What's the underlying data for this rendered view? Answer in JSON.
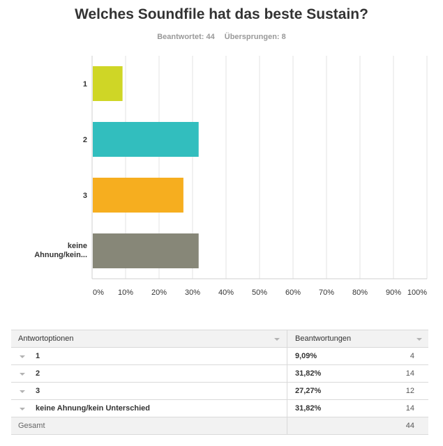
{
  "header": {
    "title": "Welches Soundfile hat das beste Sustain?",
    "answered": "Beantwortet: 44",
    "skipped": "Übersprungen: 8"
  },
  "chart_data": {
    "type": "bar",
    "orientation": "horizontal",
    "categories": [
      "1",
      "2",
      "3",
      "keine Ahnung/kein..."
    ],
    "values": [
      9.09,
      31.82,
      27.27,
      31.82
    ],
    "colors": [
      "#cfd626",
      "#32bebe",
      "#f6ae1f",
      "#878778"
    ],
    "xlim": [
      0,
      100
    ],
    "xticks": [
      "0%",
      "10%",
      "20%",
      "30%",
      "40%",
      "50%",
      "60%",
      "70%",
      "80%",
      "90%",
      "100%"
    ],
    "grid": true
  },
  "table": {
    "col_options": "Antwortoptionen",
    "col_responses": "Beantwortungen",
    "rows": [
      {
        "option": "1",
        "percent": "9,09%",
        "count": "4"
      },
      {
        "option": "2",
        "percent": "31,82%",
        "count": "14"
      },
      {
        "option": "3",
        "percent": "27,27%",
        "count": "12"
      },
      {
        "option": "keine Ahnung/kein Unterschied",
        "percent": "31,82%",
        "count": "14"
      }
    ],
    "total_label": "Gesamt",
    "total_count": "44"
  }
}
